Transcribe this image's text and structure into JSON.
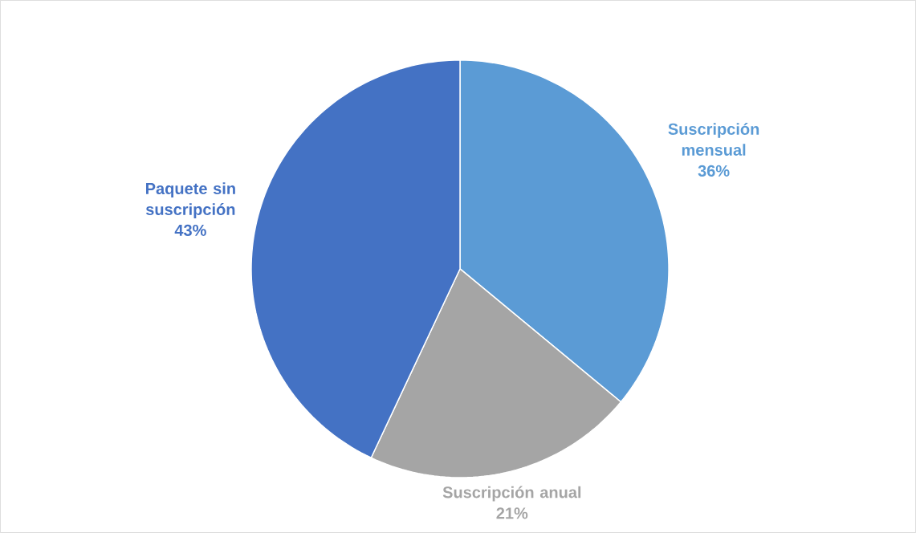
{
  "chart_data": {
    "type": "pie",
    "categories": [
      "Suscripción mensual",
      "Suscripción anual",
      "Paquete sin suscripción"
    ],
    "values": [
      36,
      21,
      43
    ],
    "value_labels": [
      "36%",
      "21%",
      "43%"
    ],
    "colors": [
      "#5b9bd5",
      "#a5a5a5",
      "#4472c4"
    ]
  }
}
